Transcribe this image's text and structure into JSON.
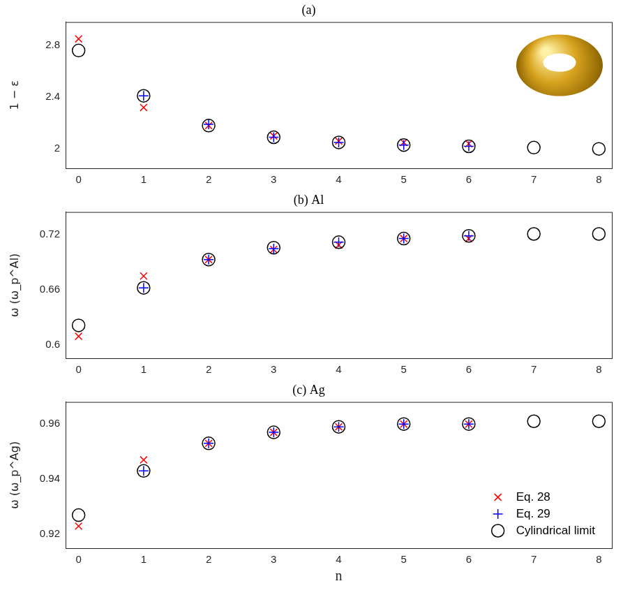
{
  "chart_data": [
    {
      "type": "scatter",
      "title": "(a)",
      "ylabel": "1 − ε",
      "xlim": [
        -0.2,
        8.2
      ],
      "xticks": [
        0,
        1,
        2,
        3,
        4,
        5,
        6,
        7,
        8
      ],
      "ylim": [
        1.85,
        2.98
      ],
      "yticks": [
        2,
        2.4,
        2.8
      ],
      "grid": false,
      "series": [
        {
          "name": "Eq. 28",
          "color": "#ff0000",
          "marker": "x",
          "x": [
            0,
            1,
            2,
            3,
            4,
            5,
            6
          ],
          "values": [
            2.85,
            2.32,
            2.18,
            2.1,
            2.06,
            2.05,
            2.04
          ]
        },
        {
          "name": "Eq. 29",
          "color": "#0000ff",
          "marker": "+",
          "x": [
            1,
            2,
            3,
            4,
            5,
            6
          ],
          "values": [
            2.41,
            2.19,
            2.09,
            2.05,
            2.03,
            2.02
          ]
        },
        {
          "name": "Cylindrical limit",
          "color": "#000000",
          "marker": "o",
          "x": [
            0,
            1,
            2,
            3,
            4,
            5,
            6,
            7,
            8
          ],
          "values": [
            2.76,
            2.41,
            2.18,
            2.09,
            2.05,
            2.03,
            2.02,
            2.01,
            2.0
          ]
        }
      ]
    },
    {
      "type": "scatter",
      "title": "(b) Al",
      "ylabel": "ω (ω_p^Al)",
      "xlim": [
        -0.2,
        8.2
      ],
      "xticks": [
        0,
        1,
        2,
        3,
        4,
        5,
        6,
        7,
        8
      ],
      "ylim": [
        0.585,
        0.745
      ],
      "yticks": [
        0.6,
        0.66,
        0.72
      ],
      "grid": false,
      "series": [
        {
          "name": "Eq. 28",
          "color": "#ff0000",
          "marker": "x",
          "x": [
            0,
            1,
            2,
            3,
            4,
            5,
            6
          ],
          "values": [
            0.609,
            0.675,
            0.693,
            0.704,
            0.709,
            0.716,
            0.716
          ]
        },
        {
          "name": "Eq. 29",
          "color": "#0000ff",
          "marker": "+",
          "x": [
            1,
            2,
            3,
            4,
            5,
            6
          ],
          "values": [
            0.662,
            0.693,
            0.705,
            0.712,
            0.716,
            0.719
          ]
        },
        {
          "name": "Cylindrical limit",
          "color": "#000000",
          "marker": "o",
          "x": [
            0,
            1,
            2,
            3,
            4,
            5,
            6,
            7,
            8
          ],
          "values": [
            0.621,
            0.662,
            0.693,
            0.706,
            0.712,
            0.716,
            0.719,
            0.721,
            0.721
          ]
        }
      ]
    },
    {
      "type": "scatter",
      "title": "(c) Ag",
      "ylabel": "ω (ω_p^Ag)",
      "xlabel": "n",
      "xlim": [
        -0.2,
        8.2
      ],
      "xticks": [
        0,
        1,
        2,
        3,
        4,
        5,
        6,
        7,
        8
      ],
      "ylim": [
        0.915,
        0.968
      ],
      "yticks": [
        0.92,
        0.94,
        0.96
      ],
      "grid": false,
      "legend": "lower right",
      "series": [
        {
          "name": "Eq. 28",
          "color": "#ff0000",
          "marker": "x",
          "x": [
            0,
            1,
            2,
            3,
            4,
            5,
            6
          ],
          "values": [
            0.923,
            0.947,
            0.953,
            0.957,
            0.959,
            0.96,
            0.96
          ]
        },
        {
          "name": "Eq. 29",
          "color": "#0000ff",
          "marker": "+",
          "x": [
            1,
            2,
            3,
            4,
            5,
            6
          ],
          "values": [
            0.943,
            0.953,
            0.957,
            0.959,
            0.96,
            0.96
          ]
        },
        {
          "name": "Cylindrical limit",
          "color": "#000000",
          "marker": "o",
          "x": [
            0,
            1,
            2,
            3,
            4,
            5,
            6,
            7,
            8
          ],
          "values": [
            0.927,
            0.943,
            0.953,
            0.957,
            0.959,
            0.96,
            0.96,
            0.961,
            0.961
          ]
        }
      ]
    }
  ]
}
